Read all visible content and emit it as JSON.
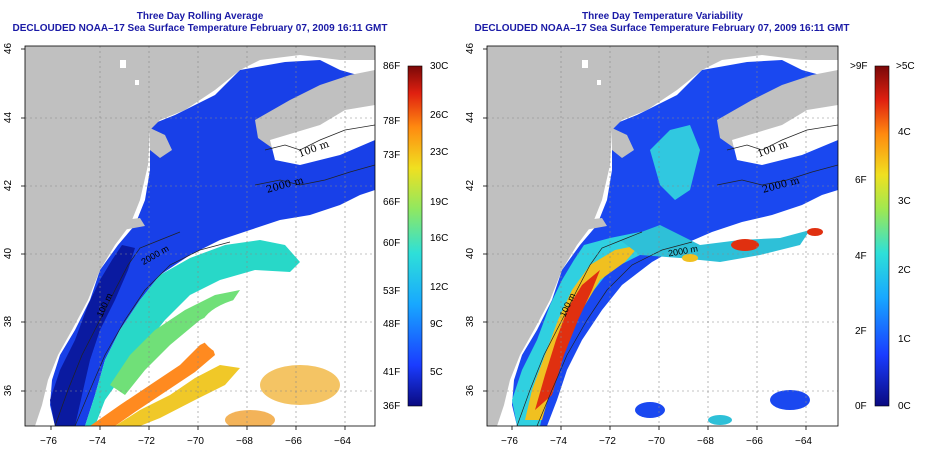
{
  "left_panel": {
    "title_line1": "Three Day Rolling Average",
    "title_line2": "DECLOUDED NOAA–17 Sea Surface Temperature February 07, 2009 16:11 GMT",
    "contour_labels": [
      "100 m",
      "2000 m",
      "100 m",
      "2000 m"
    ],
    "colorbar_left_labels": [
      "86F",
      "78F",
      "73F",
      "66F",
      "60F",
      "53F",
      "48F",
      "41F",
      "36F"
    ],
    "colorbar_right_labels": [
      "30C",
      "26C",
      "23C",
      "19C",
      "16C",
      "12C",
      "9C",
      "5C"
    ]
  },
  "right_panel": {
    "title_line1": "Three Day Temperature Variability",
    "title_line2": "DECLOUDED NOAA–17 Sea Surface Temperature February 07, 2009 16:11 GMT",
    "contour_labels": [
      "100 m",
      "2000 m",
      "100 m",
      "2000 m"
    ],
    "colorbar_left_labels": [
      ">9F",
      "6F",
      "4F",
      "2F",
      "0F"
    ],
    "colorbar_right_labels": [
      ">5C",
      "4C",
      "3C",
      "2C",
      "1C",
      "0C"
    ]
  },
  "axes": {
    "x_ticks": [
      "−76",
      "−74",
      "−72",
      "−70",
      "−68",
      "−66",
      "−64"
    ],
    "y_ticks": [
      "46",
      "44",
      "42",
      "40",
      "38",
      "36"
    ]
  },
  "colors": {
    "title": "#1a1aa6",
    "land": "#c0c0c0",
    "cloud": "#ffffff"
  }
}
